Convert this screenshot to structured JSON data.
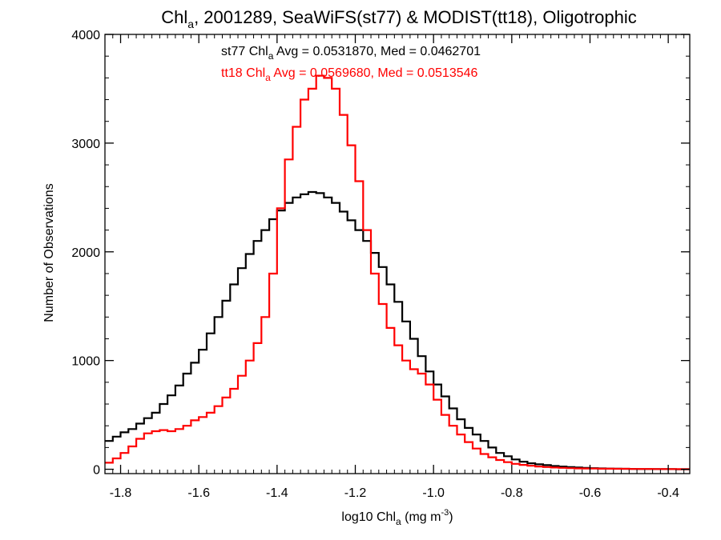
{
  "chart_data": {
    "type": "line",
    "title": {
      "pre": "Chl",
      "sub": "a",
      "post": ", 2001289, SeaWiFS(st77) & MODIST(tt18), Oligotrophic"
    },
    "xlabel": {
      "pre": "log10 Chl",
      "sub": "a",
      "mid": " (mg m",
      "sup": "-3",
      "post": ")"
    },
    "ylabel": "Number of Observations",
    "xlim": [
      -1.84,
      -0.345
    ],
    "ylim": [
      -40,
      4000
    ],
    "xticks": [
      -1.8,
      -1.6,
      -1.4,
      -1.2,
      -1.0,
      -0.8,
      -0.6,
      -0.4
    ],
    "xtick_labels": [
      "-1.8",
      "-1.6",
      "-1.4",
      "-1.2",
      "-1.0",
      "-0.8",
      "-0.6",
      "-0.4"
    ],
    "yticks": [
      0,
      1000,
      2000,
      3000,
      4000
    ],
    "ytick_labels": [
      "0",
      "1000",
      "2000",
      "3000",
      "4000"
    ],
    "grid": false,
    "step": true,
    "annotations": [
      {
        "pre": "st77 Chl",
        "sub": "a",
        "post": " Avg = 0.0531870, Med = 0.0462701",
        "color": "#000000"
      },
      {
        "pre": "tt18 Chl",
        "sub": "a",
        "post": " Avg = 0.0569680, Med = 0.0513546",
        "color": "#ff0000"
      }
    ],
    "series": [
      {
        "name": "st77",
        "color": "#000000",
        "x": [
          -1.84,
          -1.82,
          -1.8,
          -1.78,
          -1.76,
          -1.74,
          -1.72,
          -1.7,
          -1.68,
          -1.66,
          -1.64,
          -1.62,
          -1.6,
          -1.58,
          -1.56,
          -1.54,
          -1.52,
          -1.5,
          -1.48,
          -1.46,
          -1.44,
          -1.42,
          -1.4,
          -1.38,
          -1.36,
          -1.34,
          -1.32,
          -1.3,
          -1.28,
          -1.26,
          -1.24,
          -1.22,
          -1.2,
          -1.18,
          -1.16,
          -1.14,
          -1.12,
          -1.1,
          -1.08,
          -1.06,
          -1.04,
          -1.02,
          -1.0,
          -0.98,
          -0.96,
          -0.94,
          -0.92,
          -0.9,
          -0.88,
          -0.86,
          -0.84,
          -0.82,
          -0.8,
          -0.78,
          -0.76,
          -0.74,
          -0.72,
          -0.7,
          -0.68,
          -0.66,
          -0.64,
          -0.62,
          -0.6,
          -0.58,
          -0.56,
          -0.54,
          -0.52,
          -0.5,
          -0.48,
          -0.46,
          -0.44,
          -0.42,
          -0.4,
          -0.38,
          -0.36
        ],
        "y": [
          260,
          300,
          340,
          370,
          420,
          470,
          520,
          600,
          680,
          770,
          880,
          980,
          1100,
          1250,
          1400,
          1550,
          1700,
          1850,
          1980,
          2100,
          2200,
          2300,
          2380,
          2450,
          2500,
          2530,
          2550,
          2540,
          2500,
          2450,
          2370,
          2290,
          2200,
          2100,
          1990,
          1860,
          1700,
          1540,
          1360,
          1200,
          1040,
          900,
          780,
          670,
          560,
          460,
          380,
          320,
          260,
          200,
          150,
          120,
          90,
          70,
          55,
          45,
          38,
          30,
          25,
          20,
          16,
          13,
          10,
          8,
          6,
          5,
          4,
          3,
          2,
          2,
          1,
          1,
          1,
          0,
          0
        ]
      },
      {
        "name": "tt18",
        "color": "#ff0000",
        "x": [
          -1.84,
          -1.82,
          -1.8,
          -1.78,
          -1.76,
          -1.74,
          -1.72,
          -1.7,
          -1.68,
          -1.66,
          -1.64,
          -1.62,
          -1.6,
          -1.58,
          -1.56,
          -1.54,
          -1.52,
          -1.5,
          -1.48,
          -1.46,
          -1.44,
          -1.42,
          -1.4,
          -1.38,
          -1.36,
          -1.34,
          -1.32,
          -1.3,
          -1.28,
          -1.26,
          -1.24,
          -1.22,
          -1.2,
          -1.18,
          -1.16,
          -1.14,
          -1.12,
          -1.1,
          -1.08,
          -1.06,
          -1.04,
          -1.02,
          -1.0,
          -0.98,
          -0.96,
          -0.94,
          -0.92,
          -0.9,
          -0.88,
          -0.86,
          -0.84,
          -0.82,
          -0.8,
          -0.78,
          -0.76,
          -0.74,
          -0.72,
          -0.7,
          -0.68,
          -0.66,
          -0.64,
          -0.62,
          -0.6,
          -0.58,
          -0.56,
          -0.54,
          -0.52,
          -0.5,
          -0.48,
          -0.46,
          -0.44,
          -0.42,
          -0.4,
          -0.38,
          -0.36
        ],
        "y": [
          60,
          100,
          150,
          210,
          280,
          330,
          350,
          360,
          350,
          370,
          400,
          450,
          480,
          520,
          580,
          660,
          740,
          860,
          1000,
          1160,
          1400,
          1800,
          2400,
          2850,
          3150,
          3400,
          3500,
          3620,
          3600,
          3500,
          3260,
          2980,
          2650,
          2200,
          1800,
          1520,
          1300,
          1140,
          1000,
          920,
          880,
          780,
          640,
          500,
          400,
          320,
          250,
          190,
          140,
          110,
          85,
          65,
          50,
          40,
          32,
          25,
          20,
          16,
          13,
          10,
          8,
          7,
          6,
          5,
          5,
          4,
          4,
          3,
          3,
          3,
          2,
          2,
          2,
          1,
          1
        ]
      }
    ]
  }
}
